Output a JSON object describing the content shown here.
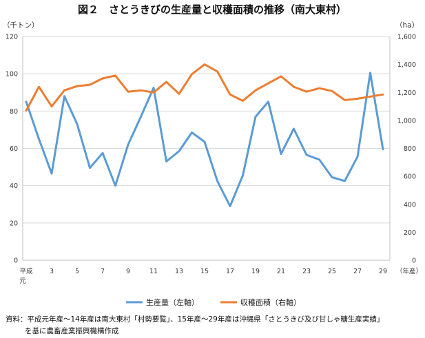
{
  "title": "図２　さとうきびの生産量と収穫面積の推移（南大東村）",
  "note": {
    "line1": "資料：平成元年産～14年産は南大東村「村勢要覧」、15年産～29年産は沖縄県「さとうきび及び甘しゃ糖生産実績」",
    "line2": "を基に農畜産業振興機構作成"
  },
  "chart_data": {
    "type": "line",
    "title": "図２　さとうきびの生産量と収穫面積の推移（南大東村）",
    "left_unit": "（千トン）",
    "right_unit": "（ha）",
    "xlabel": "（年産）",
    "x_first_label": "平成元",
    "x_first_label_lines": [
      "平成",
      "元"
    ],
    "x": [
      1,
      2,
      3,
      4,
      5,
      6,
      7,
      8,
      9,
      10,
      11,
      12,
      13,
      14,
      15,
      16,
      17,
      18,
      19,
      20,
      21,
      22,
      23,
      24,
      25,
      26,
      27,
      28,
      29
    ],
    "x_tick_labels": [
      "平成元",
      "3",
      "5",
      "7",
      "9",
      "11",
      "13",
      "15",
      "17",
      "19",
      "21",
      "23",
      "25",
      "27",
      "29"
    ],
    "y_left_lim": [
      0,
      120
    ],
    "y_left_ticks": [
      "0",
      "20",
      "40",
      "60",
      "80",
      "100",
      "120"
    ],
    "y_right_lim": [
      0,
      1600
    ],
    "y_right_ticks": [
      "0",
      "200",
      "400",
      "600",
      "800",
      "1,000",
      "1,200",
      "1,400",
      "1,600"
    ],
    "grid": true,
    "legend_position": "bottom",
    "series": [
      {
        "name": "生産量（左軸）",
        "axis": "left",
        "color": "#5B9BD5",
        "values": [
          85,
          65,
          46.5,
          88,
          73,
          49.5,
          57.5,
          40,
          62,
          77,
          92.5,
          53,
          58.5,
          68.5,
          63.5,
          42.5,
          29,
          45.5,
          77,
          85,
          57,
          70.5,
          56.5,
          54,
          44.5,
          42.5,
          55.5,
          100.5,
          59.5
        ]
      },
      {
        "name": "収穫面積（右軸）",
        "axis": "right",
        "color": "#ED7D31",
        "values": [
          1070,
          1240,
          1100,
          1215,
          1245,
          1255,
          1300,
          1320,
          1205,
          1215,
          1200,
          1275,
          1190,
          1330,
          1400,
          1350,
          1185,
          1140,
          1215,
          1265,
          1315,
          1240,
          1205,
          1230,
          1210,
          1145,
          1155,
          1170,
          1185
        ]
      }
    ]
  }
}
